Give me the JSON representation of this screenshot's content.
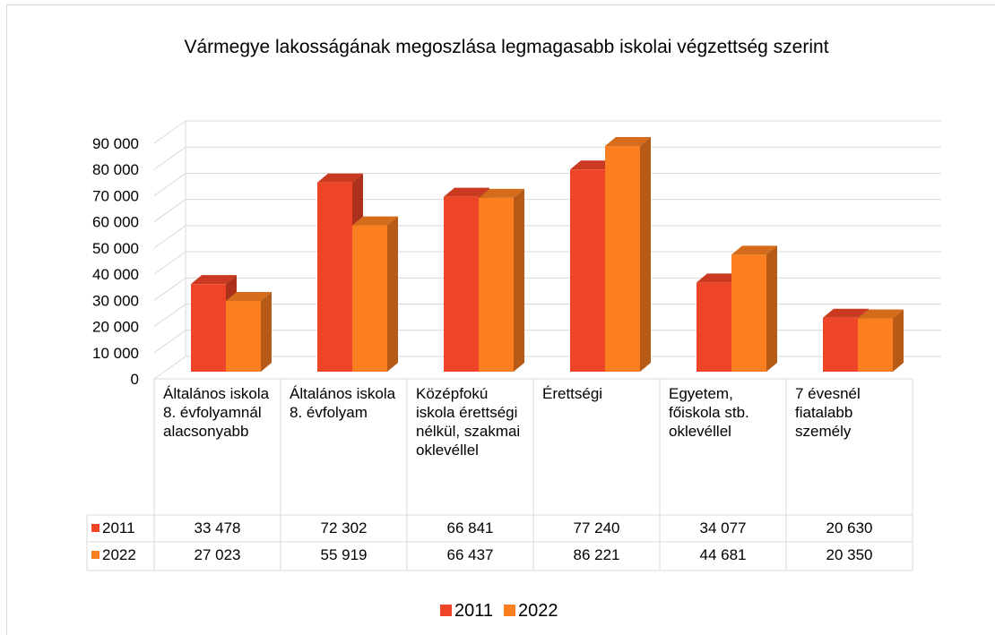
{
  "chart_data": {
    "type": "bar3d",
    "title": "Vármegye lakosságának megoszlása legmagasabb iskolai végzettség szerint",
    "categories": [
      "Általános iskola 8. évfolyamnál alacsonyabb",
      "Általános iskola 8. évfolyam",
      "Középfokú iskola érettségi nélkül, szakmai oklevéllel",
      "Érettségi",
      "Egyetem, főiskola stb. oklevéllel",
      "7 évesnél fiatalabb személy"
    ],
    "series": [
      {
        "name": "2011",
        "color": "#ee4427",
        "values": [
          33478,
          72302,
          66841,
          77240,
          34077,
          20630
        ],
        "value_labels": [
          "33 478",
          "72 302",
          "66 841",
          "77 240",
          "34 077",
          "20 630"
        ]
      },
      {
        "name": "2022",
        "color": "#fb7f20",
        "values": [
          27023,
          55919,
          66437,
          86221,
          44681,
          20350
        ],
        "value_labels": [
          "27 023",
          "55 919",
          "66 437",
          "86 221",
          "44 681",
          "20 350"
        ]
      }
    ],
    "ylim": [
      0,
      90000
    ],
    "yticks": [
      0,
      {
        "value": 10000,
        "label": "10 000"
      },
      {
        "value": 20000,
        "label": "20 000"
      },
      {
        "value": 30000,
        "label": "30 000"
      },
      {
        "value": 40000,
        "label": "40 000"
      },
      {
        "value": 50000,
        "label": "50 000"
      },
      {
        "value": 60000,
        "label": "60 000"
      },
      {
        "value": 70000,
        "label": "70 000"
      },
      {
        "value": 80000,
        "label": "80 000"
      },
      {
        "value": 90000,
        "label": "90 000"
      }
    ],
    "grid": true,
    "legend": "bottom"
  }
}
